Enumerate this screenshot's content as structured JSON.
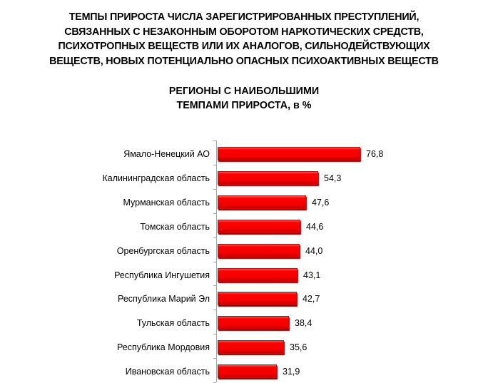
{
  "header": {
    "title_lines": [
      "ТЕМПЫ ПРИРОСТА ЧИСЛА ЗАРЕГИСТРИРОВАННЫХ ПРЕСТУПЛЕНИЙ,",
      "СВЯЗАННЫХ С НЕЗАКОННЫМ ОБОРОТОМ НАРКОТИЧЕСКИХ СРЕДСТВ,",
      "ПСИХОТРОПНЫХ ВЕЩЕСТВ ИЛИ ИХ АНАЛОГОВ, СИЛЬНОДЕЙСТВУЮЩИХ",
      "ВЕЩЕСТВ, НОВЫХ ПОТЕНЦИАЛЬНО ОПАСНЫХ ПСИХОАКТИВНЫХ ВЕЩЕСТВ"
    ],
    "subtitle_lines": [
      "РЕГИОНЫ С НАИБОЛЬШИМИ",
      "ТЕМПАМИ ПРИРОСТА, в %"
    ]
  },
  "colors": {
    "bar": "#ff0000",
    "bar_edge": "#c00000",
    "axis": "#a6a6a6",
    "text": "#000000"
  },
  "chart_data": {
    "type": "bar",
    "orientation": "horizontal",
    "title": "ТЕМПЫ ПРИРОСТА ЧИСЛА ЗАРЕГИСТРИРОВАННЫХ ПРЕСТУПЛЕНИЙ, СВЯЗАННЫХ С НЕЗАКОННЫМ ОБОРОТОМ НАРКОТИЧЕСКИХ СРЕДСТВ, ПСИХОТРОПНЫХ ВЕЩЕСТВ ИЛИ ИХ АНАЛОГОВ, СИЛЬНОДЕЙСТВУЮЩИХ ВЕЩЕСТВ, НОВЫХ ПОТЕНЦИАЛЬНО ОПАСНЫХ ПСИХОАКТИВНЫХ ВЕЩЕСТВ",
    "subtitle": "РЕГИОНЫ С НАИБОЛЬШИМИ ТЕМПАМИ ПРИРОСТА, в %",
    "xlabel": "",
    "ylabel": "",
    "unit": "%",
    "grid": false,
    "legend": null,
    "categories": [
      "Ямало-Ненецкий АО",
      "Калининградская область",
      "Мурманская область",
      "Томская область",
      "Оренбургская область",
      "Республика Ингушетия",
      "Республика Марий Эл",
      "Тульская область",
      "Республика Мордовия",
      "Ивановская область"
    ],
    "values": [
      76.8,
      54.3,
      47.6,
      44.6,
      44.0,
      43.1,
      42.7,
      38.4,
      35.6,
      31.9
    ],
    "value_labels": [
      "76,8",
      "54,3",
      "47,6",
      "44,6",
      "44,0",
      "43,1",
      "42,7",
      "38,4",
      "35,6",
      "31,9"
    ],
    "xlim": [
      0,
      80
    ]
  }
}
